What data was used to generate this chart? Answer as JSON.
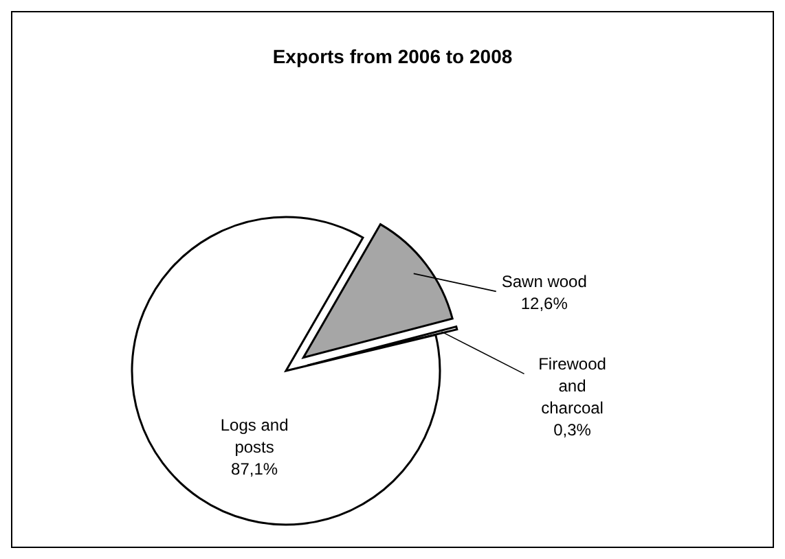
{
  "chart_data": {
    "type": "pie",
    "title": "Exports from 2006 to 2008",
    "categories": [
      "Sawn wood",
      "Firewood and charcoal",
      "Logs and posts"
    ],
    "values": [
      12.6,
      0.3,
      87.1
    ],
    "value_labels": [
      "12,6%",
      "0,3%",
      "87,1%"
    ],
    "colors": [
      "#a6a6a6",
      "#ffffff",
      "#ffffff"
    ]
  }
}
